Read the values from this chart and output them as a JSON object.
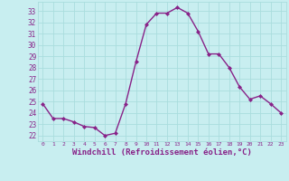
{
  "x": [
    0,
    1,
    2,
    3,
    4,
    5,
    6,
    7,
    8,
    9,
    10,
    11,
    12,
    13,
    14,
    15,
    16,
    17,
    18,
    19,
    20,
    21,
    22,
    23
  ],
  "y": [
    24.8,
    23.5,
    23.5,
    23.2,
    22.8,
    22.7,
    22.0,
    22.2,
    24.8,
    28.5,
    31.8,
    32.8,
    32.8,
    33.3,
    32.8,
    31.2,
    29.2,
    29.2,
    28.0,
    26.3,
    25.2,
    25.5,
    24.8,
    24.0
  ],
  "line_color": "#882288",
  "marker": "D",
  "markersize": 2.0,
  "linewidth": 1.0,
  "xlabel": "Windchill (Refroidissement éolien,°C)",
  "xlabel_fontsize": 6.5,
  "bg_color": "#c8eef0",
  "grid_color": "#aadddd",
  "tick_color": "#882288",
  "label_color": "#882288",
  "ylim_min": 21.5,
  "ylim_max": 33.8,
  "xlim_min": -0.5,
  "xlim_max": 23.5,
  "yticks": [
    22,
    23,
    24,
    25,
    26,
    27,
    28,
    29,
    30,
    31,
    32,
    33
  ],
  "xticks": [
    0,
    1,
    2,
    3,
    4,
    5,
    6,
    7,
    8,
    9,
    10,
    11,
    12,
    13,
    14,
    15,
    16,
    17,
    18,
    19,
    20,
    21,
    22,
    23
  ],
  "ytick_fontsize": 5.5,
  "xtick_fontsize": 4.5
}
